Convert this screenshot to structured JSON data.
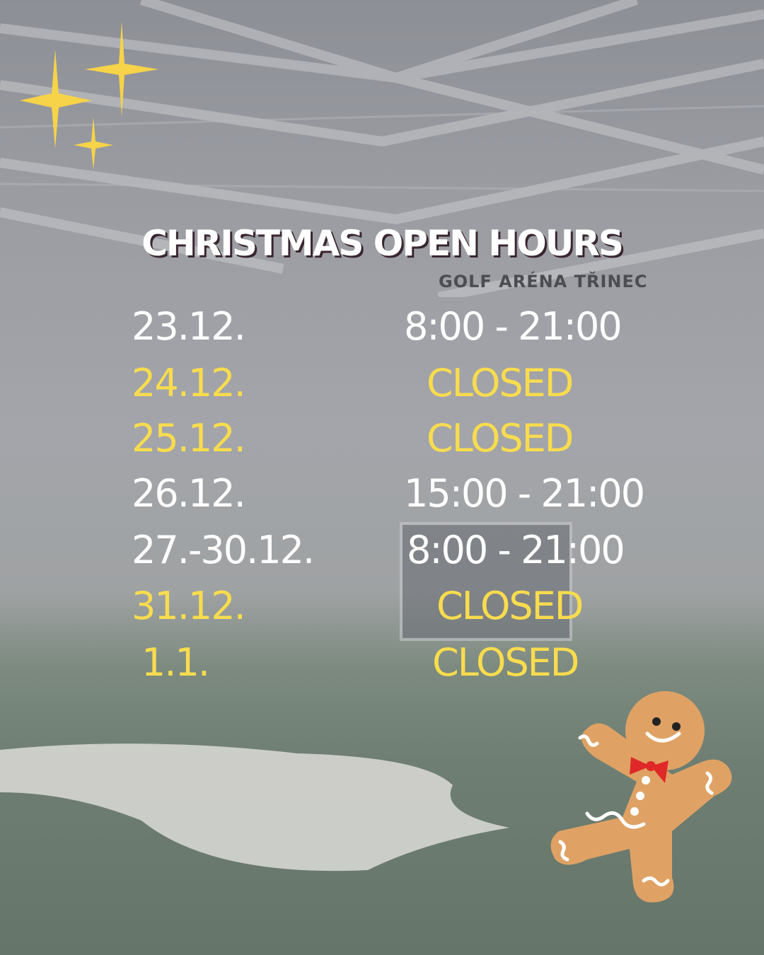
{
  "title": "CHRISTMAS OPEN HOURS",
  "background_sign": "GOLF ARÉNA TŘINEC",
  "colors": {
    "open": "#ffffff",
    "closed": "#f9dc4e",
    "title_shadow": "#3a2630"
  },
  "schedule": [
    {
      "date": "23.12.",
      "hours": "8:00 - 21:00",
      "closed": false
    },
    {
      "date": "24.12.",
      "hours": "CLOSED",
      "closed": true
    },
    {
      "date": "25.12.",
      "hours": "CLOSED",
      "closed": true
    },
    {
      "date": "26.12.",
      "hours": "15:00 - 21:00",
      "closed": false
    },
    {
      "date": "27.-30.12.",
      "hours": "8:00 - 21:00",
      "closed": false
    },
    {
      "date": "31.12.",
      "hours": "CLOSED",
      "closed": true
    },
    {
      "date": "1.1.",
      "hours": "CLOSED",
      "closed": true
    }
  ],
  "decorations": [
    "sparkle-stars-icon",
    "gingerbread-man-icon"
  ]
}
